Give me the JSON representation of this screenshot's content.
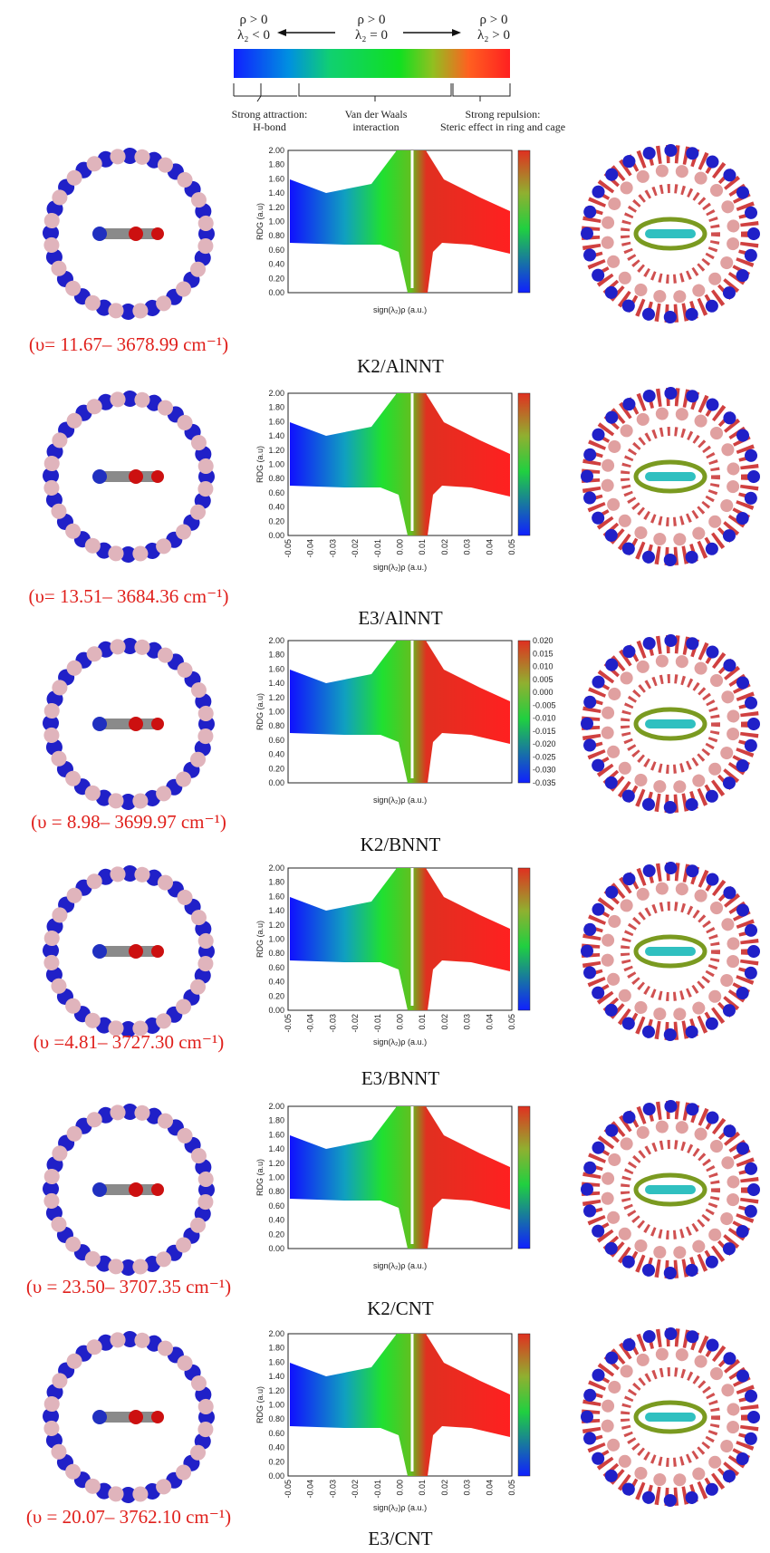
{
  "header": {
    "left": [
      "ρ > 0",
      "λ₂ < 0"
    ],
    "middle": [
      "ρ > 0",
      "λ₂ = 0"
    ],
    "right": [
      "ρ > 0",
      "λ₂ > 0"
    ],
    "notes": [
      [
        "Strong attraction:",
        "H-bond"
      ],
      [
        "Van der Waals",
        "interaction"
      ],
      [
        "Strong repulsion:",
        "Steric effect in ring and cage"
      ]
    ]
  },
  "panels": [
    {
      "frequency": "(υ= 11.67– 3678.99 cm⁻¹)",
      "caption": "K2/AlNNT",
      "plot": {
        "y_label": "RDG (a.u)",
        "x_label": "sign(λ₂)ρ (a.u.)",
        "yticks": [
          "0.00",
          "0.20",
          "0.40",
          "0.60",
          "0.80",
          "1.00",
          "1.20",
          "1.40",
          "1.60",
          "1.80",
          "2.00"
        ]
      }
    },
    {
      "frequency": "(υ= 13.51– 3684.36 cm⁻¹)",
      "caption": "E3/AlNNT",
      "plot": {
        "y_label": "RDG (a.u)",
        "x_label": "sign(λ₂)ρ (a.u.)",
        "yticks": [
          "0.00",
          "0.20",
          "0.40",
          "0.60",
          "0.80",
          "1.00",
          "1.20",
          "1.40",
          "1.60",
          "1.80",
          "2.00"
        ],
        "xticks": [
          "-0.05",
          "-0.04",
          "-0.03",
          "-0.02",
          "-0.01",
          "0.00",
          "0.01",
          "0.02",
          "0.03",
          "0.04",
          "0.05"
        ]
      }
    },
    {
      "frequency": "(υ = 8.98– 3699.97 cm⁻¹)",
      "caption": "K2/BNNT",
      "plot": {
        "y_label": "RDG (a.u)",
        "x_label": "sign(λ₂)ρ (a.u.)",
        "yticks": [
          "0.00",
          "0.20",
          "0.40",
          "0.60",
          "0.80",
          "1.00",
          "1.20",
          "1.40",
          "1.60",
          "1.80",
          "2.00"
        ],
        "colorbar": [
          "0.020",
          "0.015",
          "0.010",
          "0.005",
          "0.000",
          "-0.005",
          "-0.010",
          "-0.015",
          "-0.020",
          "-0.025",
          "-0.030",
          "-0.035"
        ]
      }
    },
    {
      "frequency": "(υ =4.81– 3727.30 cm⁻¹)",
      "caption": "E3/BNNT",
      "plot": {
        "y_label": "RDG (a.u)",
        "x_label": "sign(λ₂)ρ (a.u.)",
        "yticks": [
          "0.00",
          "0.20",
          "0.40",
          "0.60",
          "0.80",
          "1.00",
          "1.20",
          "1.40",
          "1.60",
          "1.80",
          "2.00"
        ],
        "xticks": [
          "-0.05",
          "-0.04",
          "-0.03",
          "-0.02",
          "-0.01",
          "0.00",
          "0.01",
          "0.02",
          "0.03",
          "0.04",
          "0.05"
        ]
      }
    },
    {
      "frequency": "(υ = 23.50– 3707.35 cm⁻¹)",
      "caption": "K2/CNT",
      "plot": {
        "y_label": "RDG (a.u)",
        "x_label": "sign(λ₂)ρ (a.u.)",
        "yticks": [
          "0.00",
          "0.20",
          "0.40",
          "0.60",
          "0.80",
          "1.00",
          "1.20",
          "1.40",
          "1.60",
          "1.80",
          "2.00"
        ]
      }
    },
    {
      "frequency": "(υ = 20.07– 3762.10 cm⁻¹)",
      "caption": "E3/CNT",
      "plot": {
        "y_label": "RDG (a.u)",
        "x_label": "sign(λ₂)ρ (a.u.)",
        "yticks": [
          "0.00",
          "0.20",
          "0.40",
          "0.60",
          "0.80",
          "1.00",
          "1.20",
          "1.40",
          "1.60",
          "1.80",
          "2.00"
        ],
        "xticks": [
          "-0.05",
          "-0.04",
          "-0.03",
          "-0.02",
          "-0.01",
          "0.00",
          "0.01",
          "0.02",
          "0.03",
          "0.04",
          "0.05"
        ]
      }
    }
  ]
}
